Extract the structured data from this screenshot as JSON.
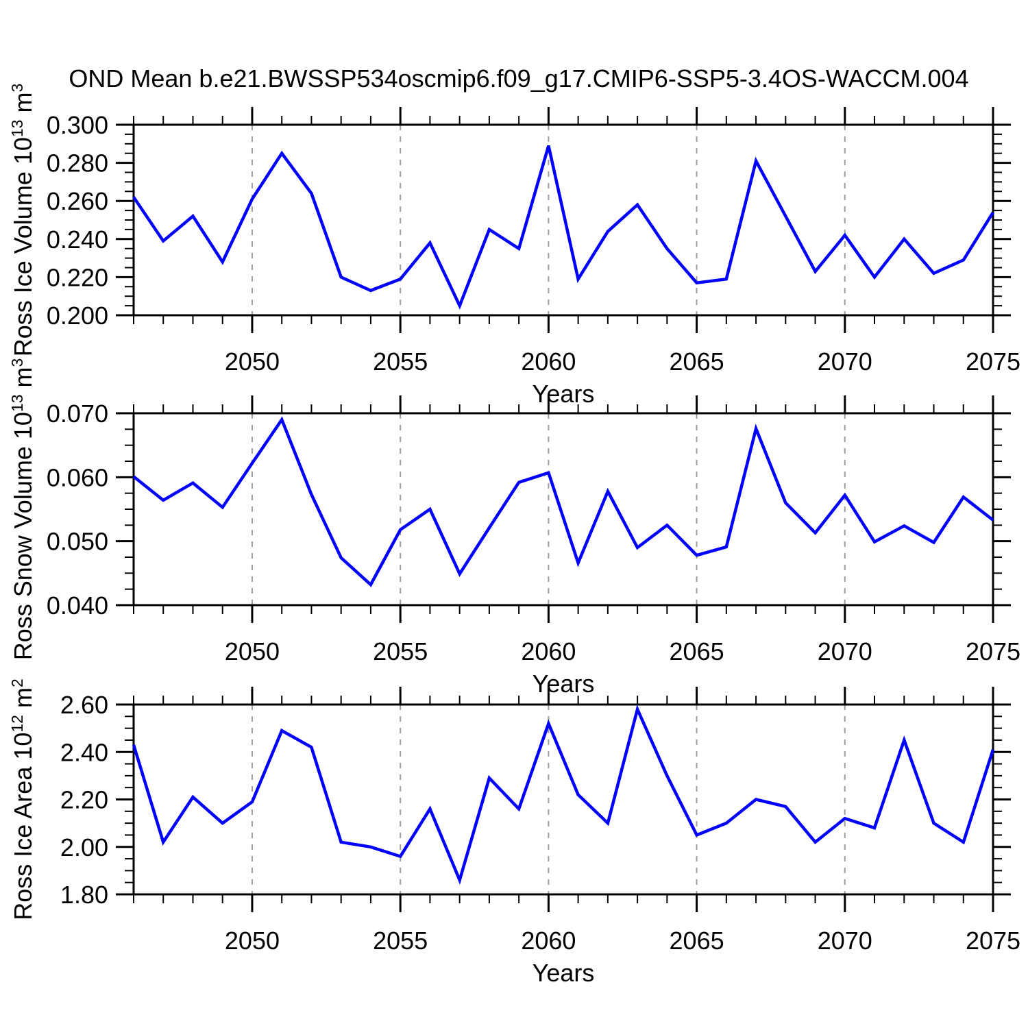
{
  "title": "OND Mean b.e21.BWSSP534oscmip6.f09_g17.CMIP6-SSP5-3.4OS-WACCM.004",
  "colors": {
    "line": "#0000ff",
    "axis": "#000000",
    "grid": "#9e9e9e",
    "background": "#ffffff"
  },
  "chart_data": [
    {
      "type": "line",
      "ylabel": "Ross Ice Volume 10^13 m^3",
      "ylabel_parts": [
        {
          "t": "Ross Ice Volume 10"
        },
        {
          "t": "13",
          "sup": true
        },
        {
          "t": " m"
        },
        {
          "t": "3",
          "sup": true
        }
      ],
      "xlabel": "Years",
      "x": [
        2046,
        2047,
        2048,
        2049,
        2050,
        2051,
        2052,
        2053,
        2054,
        2055,
        2056,
        2057,
        2058,
        2059,
        2060,
        2061,
        2062,
        2063,
        2064,
        2065,
        2066,
        2067,
        2068,
        2069,
        2070,
        2071,
        2072,
        2073,
        2074,
        2075
      ],
      "values": [
        0.262,
        0.239,
        0.252,
        0.228,
        0.261,
        0.285,
        0.264,
        0.22,
        0.213,
        0.219,
        0.238,
        0.205,
        0.245,
        0.235,
        0.289,
        0.219,
        0.244,
        0.258,
        0.235,
        0.217,
        0.219,
        0.281,
        0.252,
        0.223,
        0.242,
        0.22,
        0.24,
        0.222,
        0.229,
        0.254
      ],
      "xlim": [
        2046,
        2075
      ],
      "ylim": [
        0.2,
        0.3
      ],
      "yticks": {
        "values": [
          0.2,
          0.22,
          0.24,
          0.26,
          0.28,
          0.3
        ],
        "labels": [
          "0.200",
          "0.220",
          "0.240",
          "0.260",
          "0.280",
          "0.300"
        ],
        "minor_step": 0.005
      },
      "xticks": {
        "values": [
          2050,
          2055,
          2060,
          2065,
          2070,
          2075
        ],
        "labels": [
          "2050",
          "2055",
          "2060",
          "2065",
          "2070",
          "2075"
        ],
        "minor_step": 1
      },
      "gridlines_x": [
        2050,
        2055,
        2060,
        2065,
        2070
      ],
      "grid": "vertical-dashed",
      "legend": "none"
    },
    {
      "type": "line",
      "ylabel": "Ross Snow Volume 10^13 m^3",
      "ylabel_parts": [
        {
          "t": "Ross Snow Volume 10"
        },
        {
          "t": "13",
          "sup": true
        },
        {
          "t": " m"
        },
        {
          "t": "3",
          "sup": true
        }
      ],
      "xlabel": "Years",
      "x": [
        2046,
        2047,
        2048,
        2049,
        2050,
        2051,
        2052,
        2053,
        2054,
        2055,
        2056,
        2057,
        2058,
        2059,
        2060,
        2061,
        2062,
        2063,
        2064,
        2065,
        2066,
        2067,
        2068,
        2069,
        2070,
        2071,
        2072,
        2073,
        2074,
        2075
      ],
      "values": [
        0.0601,
        0.0564,
        0.0591,
        0.0553,
        0.0622,
        0.069,
        0.0573,
        0.0474,
        0.0432,
        0.0518,
        0.055,
        0.0449,
        0.0521,
        0.0592,
        0.0607,
        0.0466,
        0.0578,
        0.049,
        0.0525,
        0.0478,
        0.0491,
        0.0676,
        0.056,
        0.0513,
        0.0572,
        0.0499,
        0.0524,
        0.0498,
        0.0569,
        0.0533
      ],
      "xlim": [
        2046,
        2075
      ],
      "ylim": [
        0.04,
        0.07
      ],
      "yticks": {
        "values": [
          0.04,
          0.05,
          0.06,
          0.07
        ],
        "labels": [
          "0.040",
          "0.050",
          "0.060",
          "0.070"
        ],
        "minor_step": 0.0025
      },
      "xticks": {
        "values": [
          2050,
          2055,
          2060,
          2065,
          2070,
          2075
        ],
        "labels": [
          "2050",
          "2055",
          "2060",
          "2065",
          "2070",
          "2075"
        ],
        "minor_step": 1
      },
      "gridlines_x": [
        2050,
        2055,
        2060,
        2065,
        2070
      ],
      "grid": "vertical-dashed",
      "legend": "none"
    },
    {
      "type": "line",
      "ylabel": "Ross Ice Area 10^12 m^2",
      "ylabel_parts": [
        {
          "t": "Ross Ice Area 10"
        },
        {
          "t": "12",
          "sup": true
        },
        {
          "t": " m"
        },
        {
          "t": "2",
          "sup": true
        }
      ],
      "xlabel": "Years",
      "x": [
        2046,
        2047,
        2048,
        2049,
        2050,
        2051,
        2052,
        2053,
        2054,
        2055,
        2056,
        2057,
        2058,
        2059,
        2060,
        2061,
        2062,
        2063,
        2064,
        2065,
        2066,
        2067,
        2068,
        2069,
        2070,
        2071,
        2072,
        2073,
        2074,
        2075
      ],
      "values": [
        2.43,
        2.02,
        2.21,
        2.1,
        2.19,
        2.49,
        2.42,
        2.02,
        2.0,
        1.96,
        2.16,
        1.86,
        2.29,
        2.16,
        2.52,
        2.22,
        2.1,
        2.58,
        2.3,
        2.05,
        2.1,
        2.2,
        2.17,
        2.02,
        2.12,
        2.08,
        2.45,
        2.1,
        2.02,
        2.41
      ],
      "xlim": [
        2046,
        2075
      ],
      "ylim": [
        1.8,
        2.6
      ],
      "yticks": {
        "values": [
          1.8,
          2.0,
          2.2,
          2.4,
          2.6
        ],
        "labels": [
          "1.80",
          "2.00",
          "2.20",
          "2.40",
          "2.60"
        ],
        "minor_step": 0.05
      },
      "xticks": {
        "values": [
          2050,
          2055,
          2060,
          2065,
          2070,
          2075
        ],
        "labels": [
          "2050",
          "2055",
          "2060",
          "2065",
          "2070",
          "2075"
        ],
        "minor_step": 1
      },
      "gridlines_x": [
        2050,
        2055,
        2060,
        2065,
        2070
      ],
      "grid": "vertical-dashed",
      "legend": "none"
    }
  ]
}
